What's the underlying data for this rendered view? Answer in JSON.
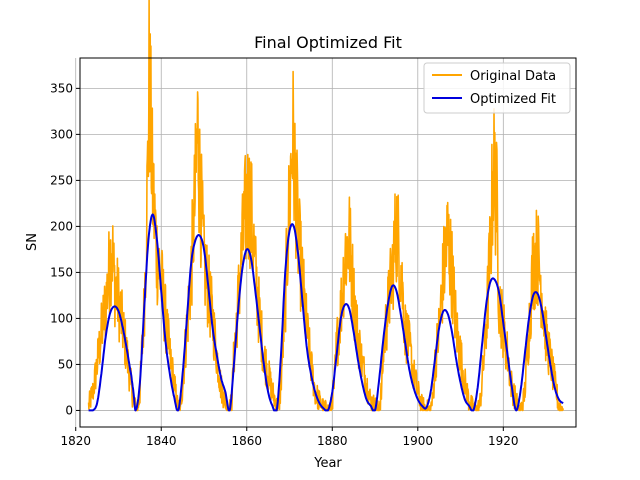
{
  "chart_data": {
    "type": "line",
    "title": "Final Optimized Fit",
    "xlabel": "Year",
    "ylabel": "SN",
    "xlim": [
      1821,
      1937
    ],
    "ylim": [
      -18,
      383
    ],
    "xticks": [
      1820,
      1840,
      1860,
      1880,
      1900,
      1920
    ],
    "yticks": [
      0,
      50,
      100,
      150,
      200,
      250,
      300,
      350
    ],
    "grid": true,
    "legend_position": "top-right",
    "series": [
      {
        "name": "Original Data",
        "color": "#FFA500",
        "style": "noisy-monthly",
        "x": [
          1823.0,
          1824.0,
          1825.0,
          1826.0,
          1827.0,
          1828.0,
          1828.5,
          1829.0,
          1830.0,
          1831.0,
          1832.0,
          1833.0,
          1833.8,
          1834.5,
          1835.0,
          1836.0,
          1836.8,
          1837.2,
          1838.0,
          1839.0,
          1840.0,
          1841.0,
          1842.0,
          1843.0,
          1843.8,
          1844.5,
          1845.0,
          1846.0,
          1847.0,
          1848.0,
          1848.5,
          1849.0,
          1850.0,
          1851.0,
          1852.0,
          1853.0,
          1854.0,
          1855.0,
          1855.8,
          1856.5,
          1857.0,
          1858.0,
          1859.0,
          1860.0,
          1860.8,
          1861.5,
          1862.0,
          1863.0,
          1864.0,
          1865.0,
          1866.0,
          1867.0,
          1867.5,
          1868.0,
          1869.0,
          1870.0,
          1870.7,
          1871.5,
          1872.0,
          1873.0,
          1874.0,
          1875.0,
          1876.0,
          1877.0,
          1878.0,
          1879.0,
          1879.8,
          1880.5,
          1881.0,
          1882.0,
          1883.0,
          1884.0,
          1885.0,
          1886.0,
          1887.0,
          1888.0,
          1889.0,
          1890.0,
          1890.8,
          1891.5,
          1892.0,
          1893.0,
          1894.0,
          1895.0,
          1896.0,
          1897.0,
          1898.0,
          1899.0,
          1900.0,
          1901.0,
          1902.0,
          1902.8,
          1903.5,
          1904.0,
          1905.0,
          1906.0,
          1907.0,
          1908.0,
          1909.0,
          1910.0,
          1911.0,
          1912.0,
          1913.0,
          1913.8,
          1914.5,
          1915.0,
          1916.0,
          1917.0,
          1917.7,
          1918.5,
          1919.0,
          1920.0,
          1921.0,
          1922.0,
          1923.0,
          1923.8,
          1924.5,
          1925.0,
          1926.0,
          1927.0,
          1928.0,
          1929.0,
          1930.0,
          1931.0,
          1932.0,
          1933.0,
          1934.0
        ],
        "y": [
          5,
          20,
          50,
          85,
          115,
          160,
          180,
          140,
          120,
          90,
          60,
          25,
          5,
          0,
          20,
          110,
          250,
          365,
          240,
          170,
          140,
          100,
          60,
          30,
          5,
          0,
          30,
          90,
          150,
          240,
          308,
          250,
          160,
          130,
          100,
          60,
          25,
          10,
          0,
          10,
          60,
          120,
          180,
          230,
          225,
          190,
          150,
          100,
          60,
          40,
          20,
          5,
          0,
          30,
          120,
          230,
          300,
          240,
          190,
          140,
          90,
          50,
          20,
          10,
          2,
          0,
          5,
          30,
          70,
          110,
          170,
          185,
          125,
          80,
          50,
          30,
          10,
          5,
          0,
          20,
          70,
          110,
          150,
          200,
          160,
          90,
          70,
          40,
          20,
          5,
          2,
          0,
          10,
          50,
          90,
          150,
          190,
          150,
          90,
          60,
          30,
          10,
          2,
          0,
          5,
          30,
          90,
          180,
          270,
          220,
          120,
          90,
          60,
          25,
          10,
          0,
          5,
          20,
          90,
          160,
          170,
          130,
          80,
          55,
          30,
          5,
          0
        ]
      },
      {
        "name": "Optimized Fit",
        "color": "#0000DD",
        "x": [
          1823.0,
          1824.0,
          1825.0,
          1826.0,
          1827.0,
          1828.0,
          1829.0,
          1830.0,
          1831.0,
          1832.0,
          1833.0,
          1833.5,
          1834.0,
          1835.0,
          1836.0,
          1837.0,
          1838.0,
          1839.0,
          1840.0,
          1841.0,
          1842.0,
          1843.0,
          1844.0,
          1845.0,
          1846.0,
          1847.0,
          1848.0,
          1849.0,
          1850.0,
          1851.0,
          1852.0,
          1853.0,
          1854.0,
          1855.0,
          1856.0,
          1857.0,
          1858.0,
          1859.0,
          1860.0,
          1861.0,
          1862.0,
          1863.0,
          1864.0,
          1865.0,
          1866.0,
          1867.0,
          1868.0,
          1869.0,
          1870.0,
          1871.0,
          1872.0,
          1873.0,
          1874.0,
          1875.0,
          1876.0,
          1877.0,
          1878.0,
          1879.0,
          1880.0,
          1881.0,
          1882.0,
          1883.0,
          1884.0,
          1885.0,
          1886.0,
          1887.0,
          1888.0,
          1889.0,
          1890.0,
          1891.0,
          1892.0,
          1893.0,
          1894.0,
          1895.0,
          1896.0,
          1897.0,
          1898.0,
          1899.0,
          1900.0,
          1901.0,
          1902.0,
          1903.0,
          1904.0,
          1905.0,
          1906.0,
          1907.0,
          1908.0,
          1909.0,
          1910.0,
          1911.0,
          1912.0,
          1913.0,
          1914.0,
          1915.0,
          1916.0,
          1917.0,
          1918.0,
          1919.0,
          1920.0,
          1921.0,
          1922.0,
          1923.0,
          1924.0,
          1925.0,
          1926.0,
          1927.0,
          1928.0,
          1929.0,
          1930.0,
          1931.0,
          1932.0,
          1933.0,
          1934.0
        ],
        "y": [
          0,
          0,
          8,
          40,
          80,
          105,
          113,
          108,
          90,
          65,
          38,
          20,
          0,
          30,
          110,
          185,
          213,
          185,
          130,
          75,
          40,
          15,
          0,
          40,
          100,
          160,
          185,
          190,
          175,
          135,
          90,
          60,
          35,
          20,
          0,
          50,
          110,
          155,
          175,
          165,
          130,
          90,
          50,
          20,
          5,
          0,
          60,
          150,
          195,
          200,
          170,
          120,
          70,
          40,
          20,
          8,
          2,
          0,
          20,
          60,
          100,
          115,
          110,
          85,
          55,
          30,
          12,
          5,
          0,
          35,
          80,
          115,
          135,
          130,
          105,
          75,
          45,
          25,
          12,
          5,
          3,
          20,
          55,
          90,
          108,
          105,
          85,
          55,
          30,
          12,
          5,
          0,
          25,
          70,
          115,
          140,
          142,
          128,
          95,
          60,
          25,
          0,
          20,
          60,
          100,
          125,
          127,
          110,
          80,
          50,
          25,
          12,
          8
        ]
      }
    ]
  }
}
